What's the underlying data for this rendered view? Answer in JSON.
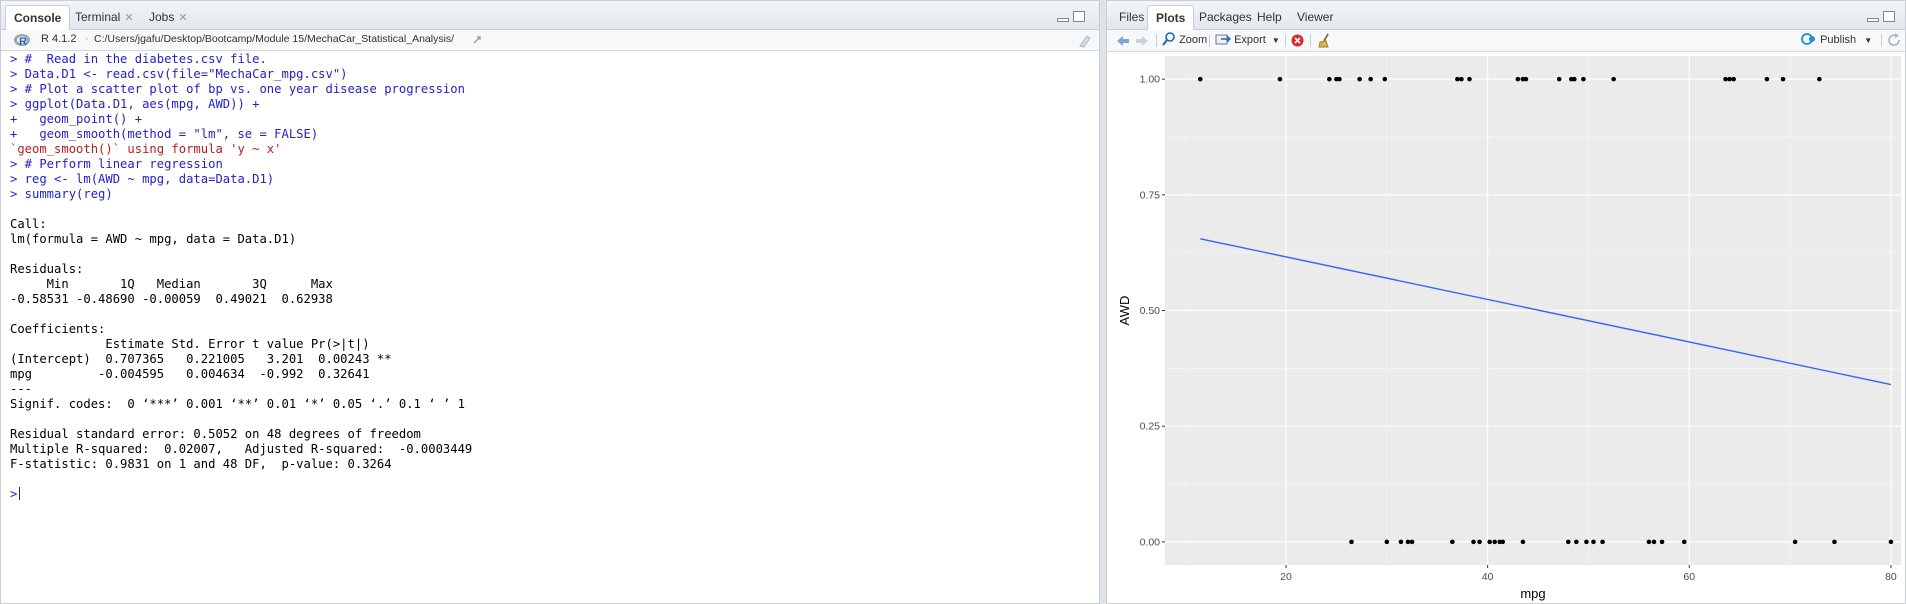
{
  "left": {
    "tabs": [
      {
        "label": "Console",
        "active": true,
        "closable": false
      },
      {
        "label": "Terminal",
        "active": false,
        "closable": true
      },
      {
        "label": "Jobs",
        "active": false,
        "closable": true
      }
    ],
    "r_version": "R 4.1.2",
    "sep": "·",
    "path": "C:/Users/jgafu/Desktop/Bootcamp/Module 15/MechaCar_Statistical_Analysis/",
    "console_lines": [
      {
        "t": "in",
        "s": "> #  Read in the diabetes.csv file."
      },
      {
        "t": "in",
        "s": "> Data.D1 <- read.csv(file=\"MechaCar_mpg.csv\")"
      },
      {
        "t": "in",
        "s": "> # Plot a scatter plot of bp vs. one year disease progression"
      },
      {
        "t": "in",
        "s": "> ggplot(Data.D1, aes(mpg, AWD)) +"
      },
      {
        "t": "in",
        "s": "+   geom_point() +"
      },
      {
        "t": "in",
        "s": "+   geom_smooth(method = \"lm\", se = FALSE)"
      },
      {
        "t": "msg",
        "s": "`geom_smooth()` using formula 'y ~ x'"
      },
      {
        "t": "in",
        "s": "> # Perform linear regression"
      },
      {
        "t": "in",
        "s": "> reg <- lm(AWD ~ mpg, data=Data.D1)"
      },
      {
        "t": "in",
        "s": "> summary(reg)"
      },
      {
        "t": "out",
        "s": ""
      },
      {
        "t": "out",
        "s": "Call:"
      },
      {
        "t": "out",
        "s": "lm(formula = AWD ~ mpg, data = Data.D1)"
      },
      {
        "t": "out",
        "s": ""
      },
      {
        "t": "out",
        "s": "Residuals:"
      },
      {
        "t": "out",
        "s": "     Min       1Q   Median       3Q      Max "
      },
      {
        "t": "out",
        "s": "-0.58531 -0.48690 -0.00059  0.49021  0.62938 "
      },
      {
        "t": "out",
        "s": ""
      },
      {
        "t": "out",
        "s": "Coefficients:"
      },
      {
        "t": "out",
        "s": "             Estimate Std. Error t value Pr(>|t|)   "
      },
      {
        "t": "out",
        "s": "(Intercept)  0.707365   0.221005   3.201  0.00243 **"
      },
      {
        "t": "out",
        "s": "mpg         -0.004595   0.004634  -0.992  0.32641   "
      },
      {
        "t": "out",
        "s": "---"
      },
      {
        "t": "out",
        "s": "Signif. codes:  0 ‘***’ 0.001 ‘**’ 0.01 ‘*’ 0.05 ‘.’ 0.1 ‘ ’ 1"
      },
      {
        "t": "out",
        "s": ""
      },
      {
        "t": "out",
        "s": "Residual standard error: 0.5052 on 48 degrees of freedom"
      },
      {
        "t": "out",
        "s": "Multiple R-squared:  0.02007,\tAdjusted R-squared:  -0.0003449 "
      },
      {
        "t": "out",
        "s": "F-statistic: 0.9831 on 1 and 48 DF,  p-value: 0.3264"
      },
      {
        "t": "out",
        "s": ""
      }
    ],
    "prompt": ">"
  },
  "right": {
    "tabs": [
      {
        "label": "Files",
        "active": false
      },
      {
        "label": "Plots",
        "active": true
      },
      {
        "label": "Packages",
        "active": false
      },
      {
        "label": "Help",
        "active": false
      },
      {
        "label": "Viewer",
        "active": false
      }
    ],
    "toolbar": {
      "zoom": "Zoom",
      "export": "Export",
      "publish": "Publish"
    }
  },
  "colors": {
    "panel_bg": "#ebebeb",
    "point": "#000000",
    "line": "#3366FF",
    "input": "#2121d6",
    "message": "#c41a1a"
  },
  "chart_data": {
    "type": "scatter",
    "title": "",
    "xlabel": "mpg",
    "ylabel": "AWD",
    "xlim": [
      8,
      81
    ],
    "ylim": [
      -0.05,
      1.05
    ],
    "xticks": [
      20,
      40,
      60,
      80
    ],
    "yticks": [
      0.0,
      0.25,
      0.5,
      0.75,
      1.0
    ],
    "ytick_labels": [
      "0.00",
      "0.25",
      "0.50",
      "0.75",
      "1.00"
    ],
    "points_awd1_mpg": [
      11.5,
      19.4,
      24.3,
      25.0,
      25.3,
      27.3,
      28.4,
      29.8,
      37.0,
      37.4,
      38.2,
      43.0,
      43.5,
      43.8,
      47.1,
      48.3,
      48.6,
      49.5,
      52.5,
      63.6,
      64.0,
      64.4,
      67.7,
      69.3,
      72.9
    ],
    "points_awd0_mpg": [
      26.5,
      30.0,
      31.4,
      32.1,
      32.5,
      36.5,
      38.6,
      39.2,
      40.2,
      40.7,
      41.2,
      41.5,
      43.5,
      48.0,
      48.8,
      49.8,
      50.5,
      51.4,
      56.0,
      56.5,
      57.3,
      59.5,
      70.5,
      74.4,
      80.0
    ],
    "regression": {
      "x0": 11.5,
      "y0": 0.655,
      "x1": 80.0,
      "y1": 0.34,
      "color": "#3366FF"
    }
  }
}
